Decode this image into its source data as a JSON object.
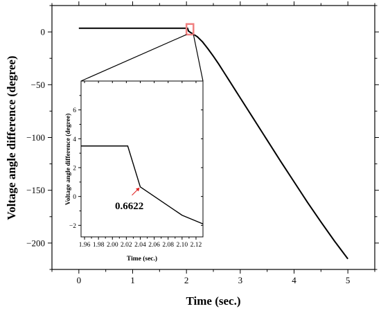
{
  "chart_data": {
    "type": "line",
    "main": {
      "xlabel": "Time (sec.)",
      "ylabel": "Voltage angle difference (degree)",
      "xlim": [
        -0.5,
        5.5
      ],
      "ylim": [
        -225,
        25
      ],
      "xticks": [
        "0",
        "1",
        "2",
        "3",
        "4",
        "5"
      ],
      "yticks": [
        "0",
        "−50",
        "−100",
        "−150",
        "−200"
      ],
      "series": [
        {
          "x": [
            0,
            0.5,
            1.0,
            1.5,
            2.0,
            2.02,
            2.04,
            2.1,
            2.2,
            2.3,
            2.4,
            2.5,
            2.6,
            2.7,
            2.8,
            2.9,
            3.0,
            3.25,
            3.5,
            3.75,
            4.0,
            4.25,
            4.5,
            4.75,
            5.0
          ],
          "y": [
            3.5,
            3.5,
            3.5,
            3.5,
            3.5,
            3.5,
            0.66,
            -1.3,
            -4.5,
            -9.5,
            -16,
            -23,
            -30.5,
            -38.5,
            -46.5,
            -54.5,
            -62.5,
            -82.5,
            -102.5,
            -122.5,
            -142,
            -161.5,
            -180,
            -198,
            -215
          ]
        }
      ],
      "highlight_box": {
        "x": [
          2.0,
          2.13
        ],
        "y": [
          -2.5,
          7.5
        ],
        "color": "#f08080"
      }
    },
    "inset": {
      "xlabel": "Time (sec.)",
      "ylabel": "Voltage angle difference (degree)",
      "xlim": [
        1.955,
        2.13
      ],
      "ylim": [
        -2.8,
        8
      ],
      "xticks": [
        "1.96",
        "1.98",
        "2.00",
        "2.02",
        "2.04",
        "2.06",
        "2.08",
        "2.10",
        "2.12"
      ],
      "yticks": [
        "6",
        "4",
        "2",
        "0",
        "−2"
      ],
      "series": [
        {
          "x": [
            1.955,
            2.022,
            2.04,
            2.1,
            2.13
          ],
          "y": [
            3.5,
            3.5,
            0.6622,
            -1.3,
            -1.9
          ]
        }
      ],
      "annotation": {
        "label": "0.6622",
        "point": [
          2.04,
          0.6622
        ],
        "arrow_color": "#e02020"
      }
    }
  }
}
